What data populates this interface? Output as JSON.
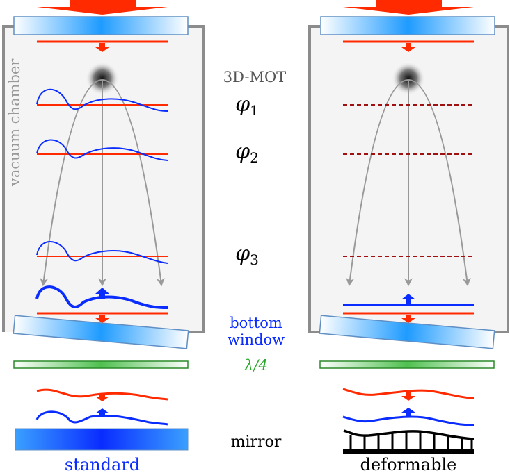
{
  "labels": {
    "chamber": "vacuum chamber",
    "mot": "3D-MOT",
    "phi1": "φ",
    "phi1_sub": "1",
    "phi2": "φ",
    "phi2_sub": "2",
    "phi3": "φ",
    "phi3_sub": "3",
    "bottom_window_1": "bottom",
    "bottom_window_2": "window",
    "quarter_wave": "λ/4",
    "mirror": "mirror",
    "standard": "standard",
    "deformable": "deformable"
  },
  "colors": {
    "laser_red": "#ff2a00",
    "wavefront_blue": "#0a2cff",
    "chamber_gray": "#8c8c8c",
    "chamber_fill": "#f4f4f4",
    "trajectory_gray": "#999999",
    "plate_green": "#2a8a2a",
    "phase_dashed": "#a01010"
  }
}
